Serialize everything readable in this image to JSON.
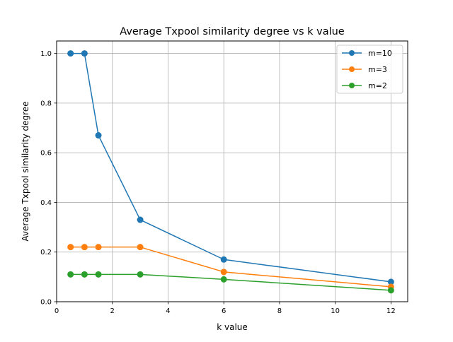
{
  "chart_data": {
    "type": "line",
    "title": "Average Txpool similarity degree vs k value",
    "xlabel": "k value",
    "ylabel": "Average Txpool similarity degree",
    "xlim": [
      0,
      12.6
    ],
    "ylim": [
      0,
      1.05
    ],
    "xticks": [
      0,
      2,
      4,
      6,
      8,
      10,
      12
    ],
    "xtick_labels": [
      "0",
      "2",
      "4",
      "6",
      "8",
      "10",
      "12"
    ],
    "yticks": [
      0.0,
      0.2,
      0.4,
      0.6,
      0.8,
      1.0
    ],
    "ytick_labels": [
      "0.0",
      "0.2",
      "0.4",
      "0.6",
      "0.8",
      "1.0"
    ],
    "grid": true,
    "legend_position": "top-right",
    "x": [
      0.5,
      1,
      1.5,
      3,
      6,
      12
    ],
    "series": [
      {
        "name": "m=10",
        "color": "#1f77b4",
        "values": [
          1.0,
          1.0,
          0.67,
          0.33,
          0.17,
          0.08
        ]
      },
      {
        "name": "m=3",
        "color": "#ff7f0e",
        "values": [
          0.22,
          0.22,
          0.22,
          0.22,
          0.12,
          0.06
        ]
      },
      {
        "name": "m=2",
        "color": "#2ca02c",
        "values": [
          0.11,
          0.11,
          0.11,
          0.11,
          0.09,
          0.046
        ]
      }
    ]
  }
}
